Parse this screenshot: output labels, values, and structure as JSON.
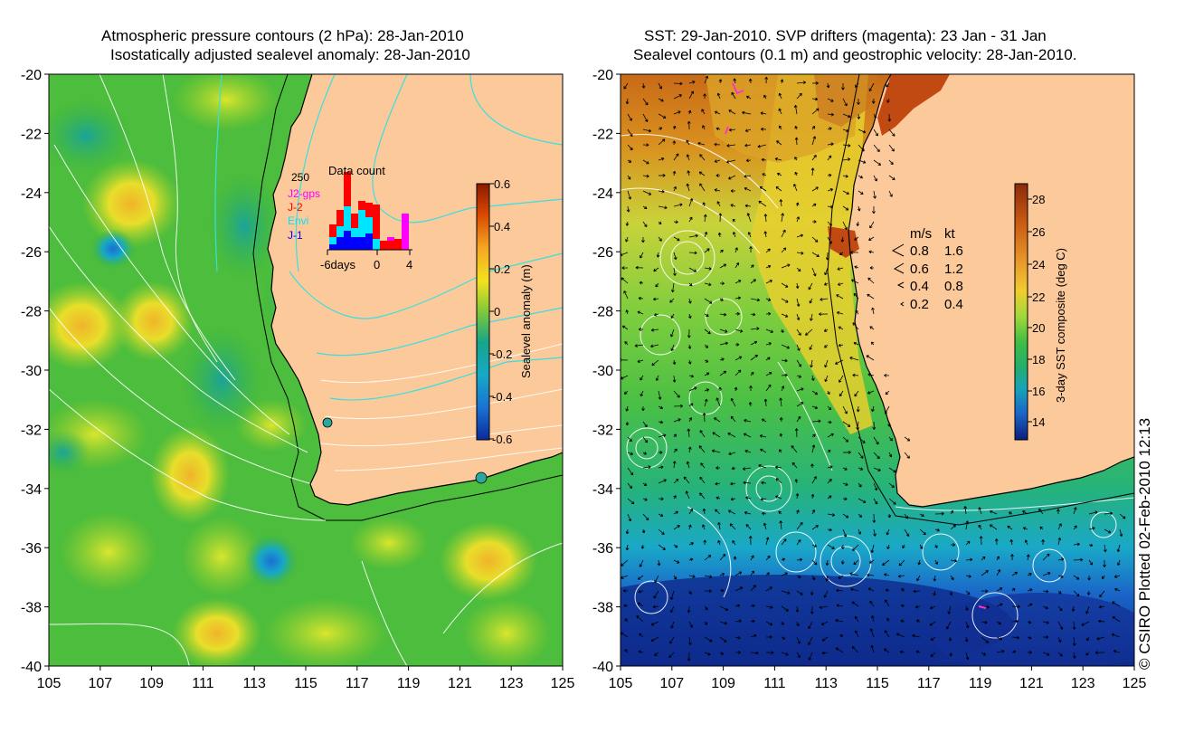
{
  "left_panel": {
    "title_line1": "Atmospheric pressure contours (2 hPa): 28-Jan-2010",
    "title_line2": "Isostatically adjusted sealevel anomaly: 28-Jan-2010",
    "colorbar": {
      "label": "Sealevel anomaly (m)",
      "ticks": [
        "0.6",
        "0.4",
        "0.2",
        "0",
        "-0.2",
        "-0.4",
        "-0.6"
      ],
      "colors": [
        "#8b1a00",
        "#d94800",
        "#f5a623",
        "#f2e21e",
        "#a6d22b",
        "#34b34a",
        "#16a58a",
        "#17a8c8",
        "#1a6fd1",
        "#0a2a9a"
      ]
    },
    "data_count": {
      "title": "Data count",
      "ymax_label": "250",
      "xtick_left": "-6days",
      "xtick_mid": "0",
      "xtick_right": "4",
      "legend": [
        {
          "label": "J2-gps",
          "color": "#ff00ff"
        },
        {
          "label": "J-2",
          "color": "#ff0000"
        },
        {
          "label": "Envi",
          "color": "#00e5ff"
        },
        {
          "label": "J-1",
          "color": "#0000ff"
        }
      ]
    }
  },
  "right_panel": {
    "title_line1": "SST: 29-Jan-2010. SVP drifters (magenta): 23 Jan - 31 Jan",
    "title_line2": "Sealevel contours (0.1 m) and geostrophic velocity: 28-Jan-2010.",
    "colorbar": {
      "label": "3-day SST composite (deg C)",
      "ticks": [
        "28",
        "26",
        "24",
        "22",
        "20",
        "18",
        "16",
        "14"
      ],
      "colors": [
        "#8b2a0a",
        "#c85a12",
        "#e7962a",
        "#f1cd2f",
        "#c9e23a",
        "#63c83e",
        "#22ae6e",
        "#17a3b8",
        "#1a64c8",
        "#0a1e7a"
      ]
    },
    "velocity_legend": {
      "header_ms": "m/s",
      "header_kt": "kt",
      "rows": [
        {
          "ms": "0.8",
          "kt": "1.6"
        },
        {
          "ms": "0.6",
          "kt": "1.2"
        },
        {
          "ms": "0.4",
          "kt": "0.8"
        },
        {
          "ms": "0.2",
          "kt": "0.4"
        }
      ]
    }
  },
  "axes": {
    "y_ticks": [
      "-20",
      "-22",
      "-24",
      "-26",
      "-28",
      "-30",
      "-32",
      "-34",
      "-36",
      "-38",
      "-40"
    ],
    "x_ticks": [
      "105",
      "107",
      "109",
      "111",
      "113",
      "115",
      "117",
      "119",
      "121",
      "123",
      "125"
    ]
  },
  "copyright": "© CSIRO Plotted 02-Feb-2010 12:13"
}
